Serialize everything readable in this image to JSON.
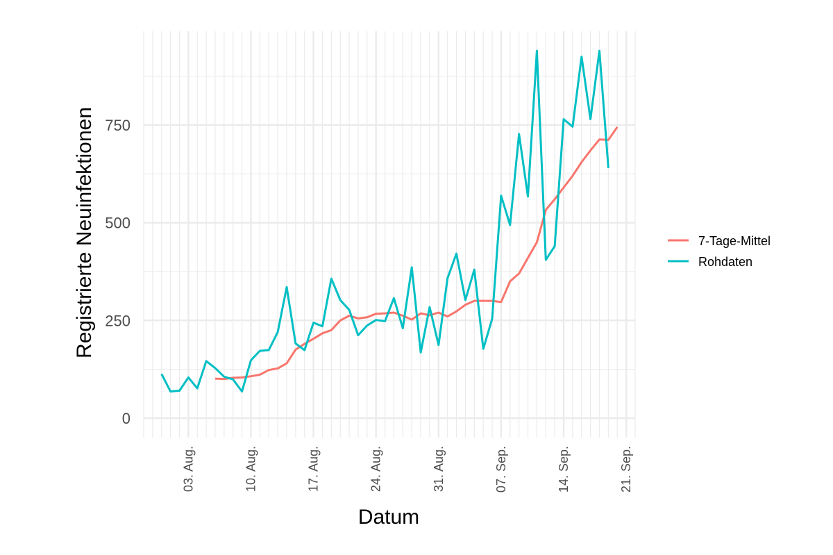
{
  "chart_data": {
    "type": "line",
    "title": "",
    "xlabel": "Datum",
    "ylabel": "Registrierte Neuinfektionen",
    "x_start": "2020-07-31",
    "x_tick_labels": [
      "03. Aug.",
      "10. Aug.",
      "17. Aug.",
      "24. Aug.",
      "31. Aug.",
      "07. Sep.",
      "14. Sep.",
      "21. Sep."
    ],
    "x_tick_dates": [
      "2020-08-03",
      "2020-08-10",
      "2020-08-17",
      "2020-08-24",
      "2020-08-31",
      "2020-09-07",
      "2020-09-14",
      "2020-09-21"
    ],
    "xlim": [
      "2020-07-29",
      "2020-09-22"
    ],
    "y_ticks": [
      0,
      250,
      500,
      750
    ],
    "y_tick_labels": [
      "0",
      "250",
      "500",
      "750"
    ],
    "ylim": [
      -50,
      990
    ],
    "grid": true,
    "legend_position": "right",
    "series": [
      {
        "name": "7-Tage-Mittel",
        "color": "#F8766D",
        "start_date": "2020-08-06",
        "values": [
          101,
          100,
          103,
          104,
          107,
          111,
          123,
          127,
          140,
          175,
          190,
          203,
          217,
          225,
          250,
          262,
          255,
          258,
          267,
          268,
          270,
          262,
          252,
          268,
          263,
          270,
          260,
          273,
          290,
          300,
          300,
          300,
          297,
          350,
          370,
          410,
          450,
          533,
          560,
          590,
          620,
          655,
          685,
          713,
          712,
          745
        ]
      },
      {
        "name": "Rohdaten",
        "color": "#00BFC4",
        "start_date": "2020-07-31",
        "values": [
          113,
          68,
          70,
          104,
          76,
          146,
          128,
          106,
          99,
          68,
          148,
          172,
          174,
          220,
          335,
          191,
          174,
          244,
          235,
          357,
          302,
          277,
          212,
          237,
          251,
          248,
          307,
          230,
          386,
          168,
          284,
          187,
          358,
          421,
          302,
          380,
          177,
          254,
          569,
          494,
          727,
          567,
          940,
          405,
          440,
          765,
          746,
          925,
          765,
          940,
          640
        ]
      }
    ]
  }
}
